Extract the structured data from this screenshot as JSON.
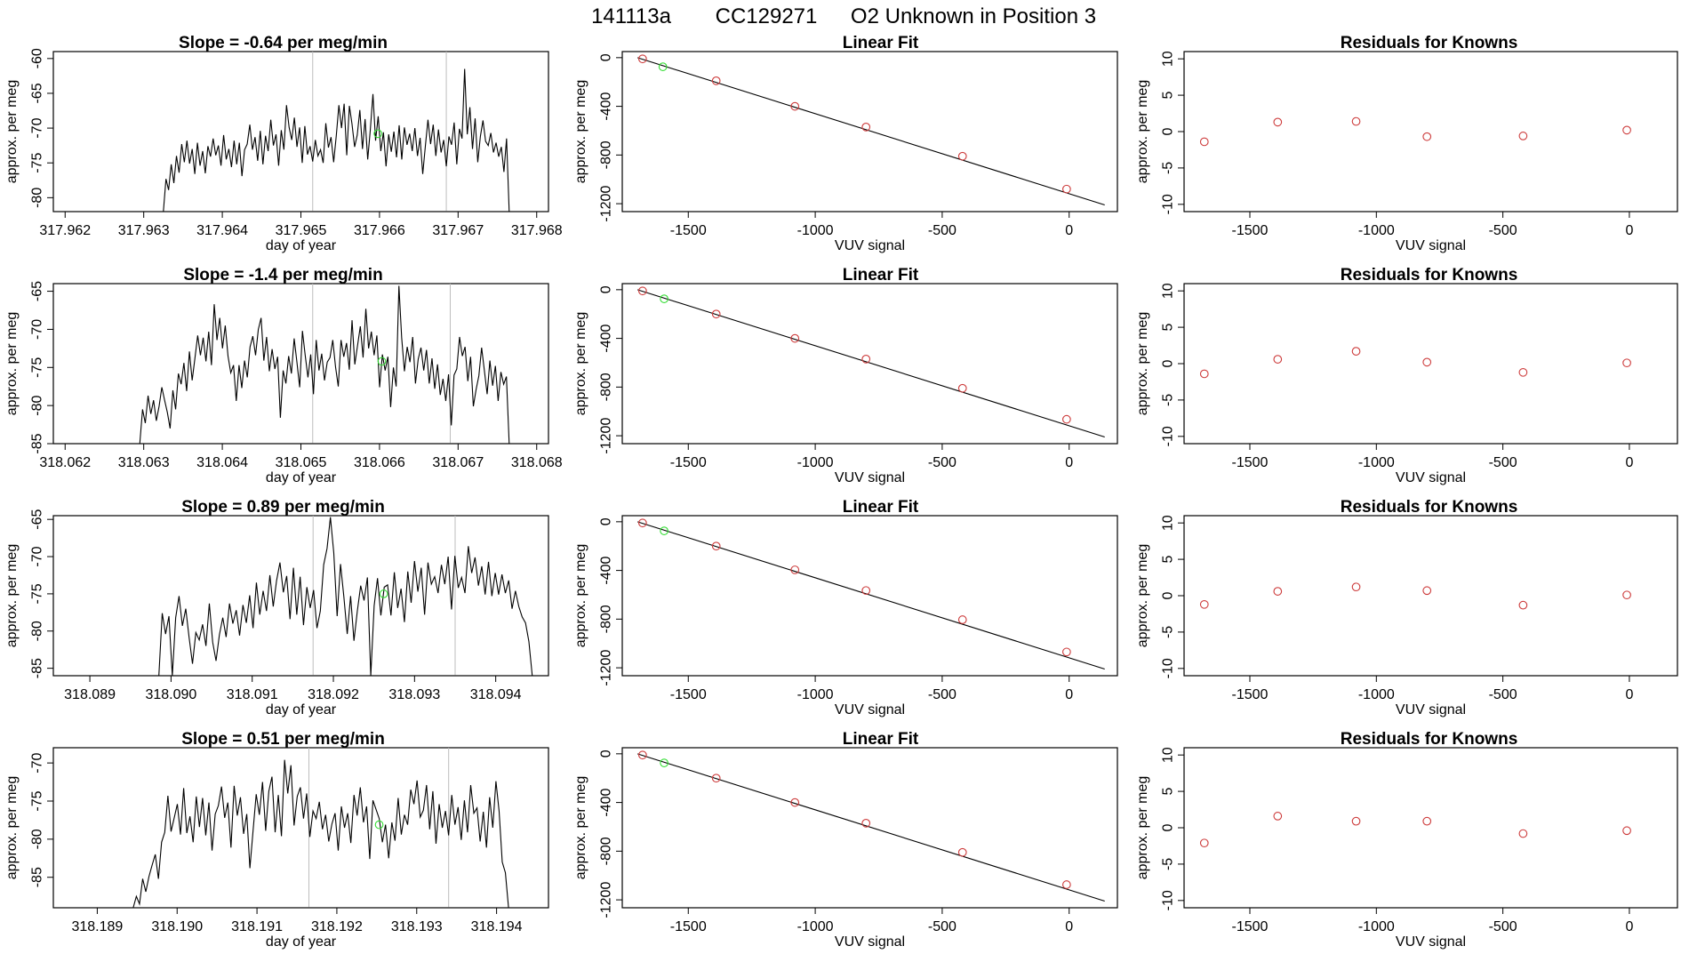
{
  "page": {
    "run_id": "141113a",
    "tank_id": "CC129271",
    "title_suffix": "O2 Unknown in Position  3"
  },
  "colors": {
    "line": "#000000",
    "known_point": "#cd3b3b",
    "unknown_point": "#33dd33",
    "cycle_marker": "#bdbdbd"
  },
  "labels": {
    "day_axis": "day of year",
    "per_meg_axis": "approx. per meg",
    "vuv_axis": "VUV signal",
    "fit_title": "Linear Fit",
    "resid_title": "Residuals for Knowns",
    "slope_prefix": "Slope = ",
    "slope_unit": " per meg/min"
  },
  "chart_data": [
    {
      "row": 0,
      "time_series": {
        "type": "line",
        "slope": "-0.64",
        "xlim": [
          317.96185,
          317.96815
        ],
        "ylim": [
          -82,
          -59
        ],
        "xticks": [
          317.962,
          317.963,
          317.964,
          317.965,
          317.966,
          317.967,
          317.968
        ],
        "xtick_labels": [
          "317.962",
          "317.963",
          "317.964",
          "317.965",
          "317.966",
          "317.967",
          "317.968"
        ],
        "yticks": [
          -80,
          -75,
          -70,
          -65,
          -60
        ],
        "ytick_labels": [
          "-80",
          "-75",
          "-70",
          "-65",
          "-60"
        ],
        "x_start": 317.96325,
        "x_end": 317.96765,
        "cycle_markers": [
          317.96515,
          317.96685
        ],
        "unknown_point": [
          317.96598,
          -70.8
        ],
        "y": [
          -82,
          -77.3,
          -78.9,
          -75.2,
          -77.9,
          -74.0,
          -76.4,
          -72.3,
          -74.9,
          -71.8,
          -75.1,
          -73.0,
          -76.6,
          -72.1,
          -75.4,
          -73.3,
          -76.5,
          -72.6,
          -74.1,
          -71.5,
          -73.9,
          -72.5,
          -75.4,
          -71.0,
          -74.5,
          -73.0,
          -75.6,
          -71.8,
          -75.2,
          -72.1,
          -76.9,
          -73.1,
          -72.3,
          -69.5,
          -73.1,
          -71.3,
          -74.7,
          -70.4,
          -75.2,
          -71.1,
          -73.3,
          -68.8,
          -72.5,
          -70.9,
          -75.4,
          -70.3,
          -73.1,
          -66.7,
          -69.9,
          -71.7,
          -68.5,
          -72.7,
          -69.9,
          -75.0,
          -69.7,
          -73.8,
          -72.6,
          -74.8,
          -71.7,
          -74.0,
          -73.1,
          -75.0,
          -69.3,
          -72.8,
          -71.3,
          -74.9,
          -71.1,
          -66.7,
          -70.0,
          -66.5,
          -73.9,
          -66.8,
          -69.4,
          -72.7,
          -71.0,
          -67.4,
          -73.0,
          -68.7,
          -74.5,
          -70.2,
          -65.1,
          -71.8,
          -68.3,
          -73.3,
          -70.6,
          -75.5,
          -70.9,
          -73.4,
          -70.5,
          -74.2,
          -69.6,
          -74.5,
          -69.9,
          -72.4,
          -70.8,
          -73.3,
          -70.0,
          -74.0,
          -71.4,
          -76.6,
          -72.6,
          -68.8,
          -72.3,
          -69.5,
          -74.0,
          -70.2,
          -73.5,
          -71.7,
          -75.5,
          -71.2,
          -72.4,
          -69.2,
          -75.2,
          -70.1,
          -71.5,
          -61.5,
          -70.9,
          -67.0,
          -73.0,
          -68.6,
          -74.9,
          -71.2,
          -68.9,
          -71.9,
          -72.5,
          -70.7,
          -73.5,
          -72.1,
          -74.1,
          -72.7,
          -76.3,
          -71.5,
          -82
        ]
      },
      "linear_fit": {
        "type": "scatter",
        "knowns_x": [
          -1680,
          -1390,
          -1080,
          -800,
          -420,
          -10
        ],
        "knowns_y": [
          -10,
          -190,
          -400,
          -570,
          -810,
          -1080
        ],
        "unknown": [
          -1600,
          -75
        ],
        "fit_line": [
          [
            -1700,
            0
          ],
          [
            140,
            -1210
          ]
        ],
        "xlim": [
          -1760,
          190
        ],
        "ylim": [
          -1265,
          50
        ]
      },
      "residuals": {
        "type": "scatter",
        "x": [
          -1680,
          -1390,
          -1080,
          -800,
          -420,
          -10
        ],
        "y": [
          -1.4,
          1.3,
          1.4,
          -0.7,
          -0.6,
          0.2
        ],
        "xlim": [
          -1760,
          190
        ],
        "ylim": [
          -11,
          11
        ]
      }
    },
    {
      "row": 1,
      "time_series": {
        "type": "line",
        "slope": "-1.4",
        "xlim": [
          318.06185,
          318.06815
        ],
        "ylim": [
          -85,
          -64
        ],
        "xticks": [
          318.062,
          318.063,
          318.064,
          318.065,
          318.066,
          318.067,
          318.068
        ],
        "xtick_labels": [
          "318.062",
          "318.063",
          "318.064",
          "318.065",
          "318.066",
          "318.067",
          "318.068"
        ],
        "yticks": [
          -85,
          -80,
          -75,
          -70,
          -65
        ],
        "ytick_labels": [
          "-85",
          "-80",
          "-75",
          "-70",
          "-65"
        ],
        "x_start": 318.06295,
        "x_end": 318.06765,
        "cycle_markers": [
          318.06515,
          318.0669
        ],
        "unknown_point": [
          318.06603,
          -74.2
        ],
        "y": [
          -85,
          -80.5,
          -82.3,
          -78.7,
          -81.1,
          -79.3,
          -82.0,
          -80.1,
          -77.6,
          -79.3,
          -80.9,
          -83.0,
          -78.0,
          -80.5,
          -75.8,
          -77.2,
          -74.4,
          -78.1,
          -72.9,
          -76.7,
          -73.8,
          -70.8,
          -73.4,
          -71.1,
          -74.2,
          -70.3,
          -74.7,
          -66.7,
          -71.4,
          -68.5,
          -72.5,
          -69.5,
          -73.5,
          -75.7,
          -74.7,
          -79.4,
          -74.7,
          -77.7,
          -74.1,
          -76.3,
          -72.3,
          -70.9,
          -73.4,
          -70.0,
          -68.5,
          -74.1,
          -71.0,
          -75.5,
          -72.6,
          -75.2,
          -73.6,
          -81.6,
          -75.4,
          -77.1,
          -73.5,
          -75.8,
          -71.2,
          -74.3,
          -77.6,
          -70.2,
          -73.4,
          -76.3,
          -73.3,
          -78.5,
          -71.4,
          -75.4,
          -73.2,
          -76.7,
          -74.3,
          -73.7,
          -71.4,
          -74.9,
          -77.5,
          -71.4,
          -73.6,
          -71.8,
          -75.3,
          -68.8,
          -74.6,
          -72.1,
          -69.6,
          -73.7,
          -67.3,
          -72.5,
          -70.3,
          -73.4,
          -70.8,
          -77.6,
          -73.3,
          -75.4,
          -73.6,
          -80.2,
          -75.0,
          -77.5,
          -64.3,
          -71.1,
          -75.5,
          -72.3,
          -74.3,
          -71.0,
          -77.1,
          -73.9,
          -72.4,
          -75.4,
          -72.7,
          -77.1,
          -73.8,
          -77.8,
          -74.6,
          -78.6,
          -76.5,
          -79.4,
          -75.9,
          -82.6,
          -76.0,
          -75.2,
          -71.0,
          -73.5,
          -72.3,
          -76.8,
          -73.6,
          -80.1,
          -77.9,
          -76.1,
          -72.4,
          -75.4,
          -78.5,
          -74.1,
          -77.4,
          -74.8,
          -79.4,
          -75.6,
          -77.2,
          -76.2,
          -85
        ]
      },
      "linear_fit": {
        "type": "scatter",
        "knowns_x": [
          -1680,
          -1390,
          -1080,
          -800,
          -420,
          -10
        ],
        "knowns_y": [
          -10,
          -200,
          -400,
          -570,
          -810,
          -1065
        ],
        "unknown": [
          -1595,
          -75
        ],
        "fit_line": [
          [
            -1700,
            0
          ],
          [
            140,
            -1210
          ]
        ],
        "xlim": [
          -1760,
          190
        ],
        "ylim": [
          -1265,
          50
        ]
      },
      "residuals": {
        "type": "scatter",
        "x": [
          -1680,
          -1390,
          -1080,
          -800,
          -420,
          -10
        ],
        "y": [
          -1.4,
          0.6,
          1.7,
          0.2,
          -1.2,
          0.1
        ],
        "xlim": [
          -1760,
          190
        ],
        "ylim": [
          -11,
          11
        ]
      }
    },
    {
      "row": 2,
      "time_series": {
        "type": "line",
        "slope": "0.89",
        "xlim": [
          318.08855,
          318.09465
        ],
        "ylim": [
          -86,
          -64.5
        ],
        "xticks": [
          318.089,
          318.09,
          318.091,
          318.092,
          318.093,
          318.094
        ],
        "xtick_labels": [
          "318.089",
          "318.090",
          "318.091",
          "318.092",
          "318.093",
          "318.094"
        ],
        "yticks": [
          -85,
          -80,
          -75,
          -70,
          -65
        ],
        "ytick_labels": [
          "-85",
          "-80",
          "-75",
          "-70",
          "-65"
        ],
        "x_start": 318.08985,
        "x_end": 318.09445,
        "cycle_markers": [
          318.09175,
          318.0935
        ],
        "unknown_point": [
          318.09262,
          -75.0
        ],
        "y": [
          -86,
          -77.6,
          -80.4,
          -78.0,
          -86,
          -78.2,
          -75.3,
          -79.3,
          -77.0,
          -80.9,
          -84.4,
          -80.2,
          -81.2,
          -79.1,
          -82.0,
          -76.3,
          -81.5,
          -84.0,
          -80.5,
          -78.2,
          -80.8,
          -76.3,
          -79.0,
          -77.2,
          -80.6,
          -76.5,
          -78.9,
          -75.2,
          -79.6,
          -73.5,
          -77.8,
          -74.6,
          -77.3,
          -72.5,
          -76.7,
          -73.2,
          -70.8,
          -74.8,
          -72.6,
          -78.4,
          -71.5,
          -77.8,
          -72.7,
          -79.2,
          -74.1,
          -76.9,
          -74.5,
          -79.6,
          -77.3,
          -71.1,
          -68.9,
          -64.7,
          -69.5,
          -78.0,
          -71.0,
          -75.4,
          -80.4,
          -75.3,
          -81.3,
          -77.3,
          -73.9,
          -75.9,
          -72.8,
          -86,
          -76.6,
          -72.9,
          -77.9,
          -74.1,
          -73.8,
          -77.9,
          -72.1,
          -76.9,
          -74.3,
          -78.8,
          -72.0,
          -76.2,
          -70.6,
          -74.7,
          -71.5,
          -77.8,
          -70.8,
          -73.7,
          -72.7,
          -74.9,
          -71.1,
          -73.7,
          -70.0,
          -77.1,
          -69.9,
          -74.2,
          -72.8,
          -74.9,
          -68.6,
          -72.2,
          -70.1,
          -73.9,
          -71.3,
          -75.1,
          -70.7,
          -75.3,
          -72.2,
          -75.1,
          -72.4,
          -74.9,
          -73.2,
          -77.0,
          -74.6,
          -76.7,
          -78.1,
          -78.9,
          -81.4,
          -86
        ]
      },
      "linear_fit": {
        "type": "scatter",
        "knowns_x": [
          -1680,
          -1390,
          -1080,
          -800,
          -420,
          -10
        ],
        "knowns_y": [
          -10,
          -200,
          -395,
          -565,
          -805,
          -1070
        ],
        "unknown": [
          -1595,
          -75
        ],
        "fit_line": [
          [
            -1700,
            0
          ],
          [
            140,
            -1210
          ]
        ],
        "xlim": [
          -1760,
          190
        ],
        "ylim": [
          -1265,
          50
        ]
      },
      "residuals": {
        "type": "scatter",
        "x": [
          -1680,
          -1390,
          -1080,
          -800,
          -420,
          -10
        ],
        "y": [
          -1.2,
          0.6,
          1.2,
          0.7,
          -1.3,
          0.1
        ],
        "xlim": [
          -1760,
          190
        ],
        "ylim": [
          -11,
          11
        ]
      }
    },
    {
      "row": 3,
      "time_series": {
        "type": "line",
        "slope": "0.51",
        "xlim": [
          318.18845,
          318.19465
        ],
        "ylim": [
          -89,
          -68
        ],
        "xticks": [
          318.189,
          318.19,
          318.191,
          318.192,
          318.193,
          318.194
        ],
        "xtick_labels": [
          "318.189",
          "318.190",
          "318.191",
          "318.192",
          "318.193",
          "318.194"
        ],
        "yticks": [
          -85,
          -80,
          -75,
          -70
        ],
        "ytick_labels": [
          "-85",
          "-80",
          "-75",
          "-70"
        ],
        "x_start": 318.18945,
        "x_end": 318.19415,
        "cycle_markers": [
          318.19165,
          318.1934
        ],
        "unknown_point": [
          318.19253,
          -78.1
        ],
        "y": [
          -89,
          -87.5,
          -88.5,
          -85.2,
          -86.9,
          -84.9,
          -83.4,
          -82.0,
          -85.2,
          -80.4,
          -79.1,
          -74.3,
          -79.0,
          -77.2,
          -75.4,
          -79.4,
          -73.3,
          -79.2,
          -77.0,
          -80.4,
          -74.4,
          -78.4,
          -74.6,
          -79.5,
          -75.2,
          -81.5,
          -76.7,
          -75.6,
          -73.1,
          -77.2,
          -75.2,
          -81.1,
          -73.0,
          -76.9,
          -74.5,
          -79.3,
          -76.7,
          -83.8,
          -78.9,
          -74.1,
          -76.8,
          -72.5,
          -78.9,
          -73.7,
          -71.8,
          -79.1,
          -74.2,
          -79.6,
          -69.6,
          -74.0,
          -70.3,
          -78.2,
          -74.4,
          -73.2,
          -77.3,
          -74.0,
          -79.7,
          -76.3,
          -77.3,
          -75.1,
          -78.7,
          -76.8,
          -80.3,
          -78.0,
          -76.6,
          -81.5,
          -75.7,
          -78.5,
          -76.6,
          -80.5,
          -74.2,
          -76.9,
          -73.2,
          -77.8,
          -75.7,
          -82.6,
          -74.9,
          -76.1,
          -77.3,
          -80.4,
          -78.1,
          -82.5,
          -77.8,
          -80.2,
          -74.6,
          -79.4,
          -76.8,
          -78.1,
          -73.5,
          -75.4,
          -72.3,
          -77.1,
          -76.2,
          -72.9,
          -78.7,
          -73.7,
          -80.6,
          -75.4,
          -78.5,
          -76.3,
          -79.5,
          -74.2,
          -78.1,
          -75.8,
          -80.1,
          -74.9,
          -79.1,
          -72.9,
          -76.6,
          -75.9,
          -80.3,
          -76.4,
          -81.1,
          -74.5,
          -78.5,
          -72.4,
          -76.3,
          -83.0,
          -84.4,
          -89
        ]
      },
      "linear_fit": {
        "type": "scatter",
        "knowns_x": [
          -1680,
          -1390,
          -1080,
          -800,
          -420,
          -10
        ],
        "knowns_y": [
          -10,
          -200,
          -400,
          -570,
          -810,
          -1075
        ],
        "unknown": [
          -1595,
          -75
        ],
        "fit_line": [
          [
            -1700,
            0
          ],
          [
            140,
            -1210
          ]
        ],
        "xlim": [
          -1760,
          190
        ],
        "ylim": [
          -1265,
          50
        ]
      },
      "residuals": {
        "type": "scatter",
        "x": [
          -1680,
          -1390,
          -1080,
          -800,
          -420,
          -10
        ],
        "y": [
          -2.1,
          1.6,
          0.9,
          0.9,
          -0.8,
          -0.4
        ],
        "xlim": [
          -1760,
          190
        ],
        "ylim": [
          -11,
          11
        ]
      }
    }
  ]
}
